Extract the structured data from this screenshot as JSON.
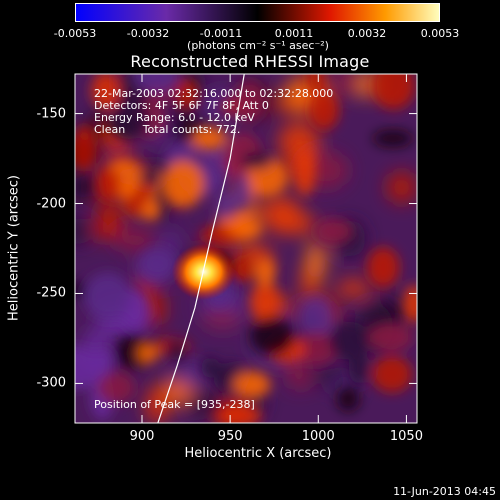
{
  "colorbar": {
    "ticks": [
      "-0.0053",
      "-0.0032",
      "-0.0011",
      "0.0011",
      "0.0032",
      "0.0053"
    ],
    "units": "(photons cm⁻² s⁻¹ asec⁻²)"
  },
  "chart_data": {
    "type": "heatmap",
    "title": "Reconstructed RHESSI Image",
    "xlabel": "Heliocentric X (arcsec)",
    "ylabel": "Heliocentric Y (arcsec)",
    "xlim": [
      862,
      1056
    ],
    "ylim": [
      -322,
      -128
    ],
    "xticks": [
      "900",
      "950",
      "1000",
      "1050"
    ],
    "yticks": [
      "-150",
      "-200",
      "-250",
      "-300"
    ],
    "annotations": {
      "line1": "22-Mar-2003 02:32:16.000 to 02:32:28.000",
      "line2": "Detectors: 4F 5F 6F 7F 8F, Att 0",
      "line3": "Energy Range: 6.0 - 12.0 keV",
      "line4": "Clean     Total counts: 772.",
      "peak": "Position of Peak = [935,-238]"
    },
    "peak": {
      "x": 935,
      "y": -238
    },
    "limb_curve": [
      [
        909,
        -322
      ],
      [
        920,
        -290
      ],
      [
        930,
        -258
      ],
      [
        940,
        -215
      ],
      [
        950,
        -175
      ],
      [
        958,
        -128
      ]
    ],
    "colormap": [
      "#1a0cff",
      "#6a1fb0",
      "#1a0000",
      "#e02000",
      "#ff9000",
      "#ffff40",
      "#ffffff"
    ]
  },
  "footer": {
    "date": "11-Jun-2013 04:45"
  }
}
